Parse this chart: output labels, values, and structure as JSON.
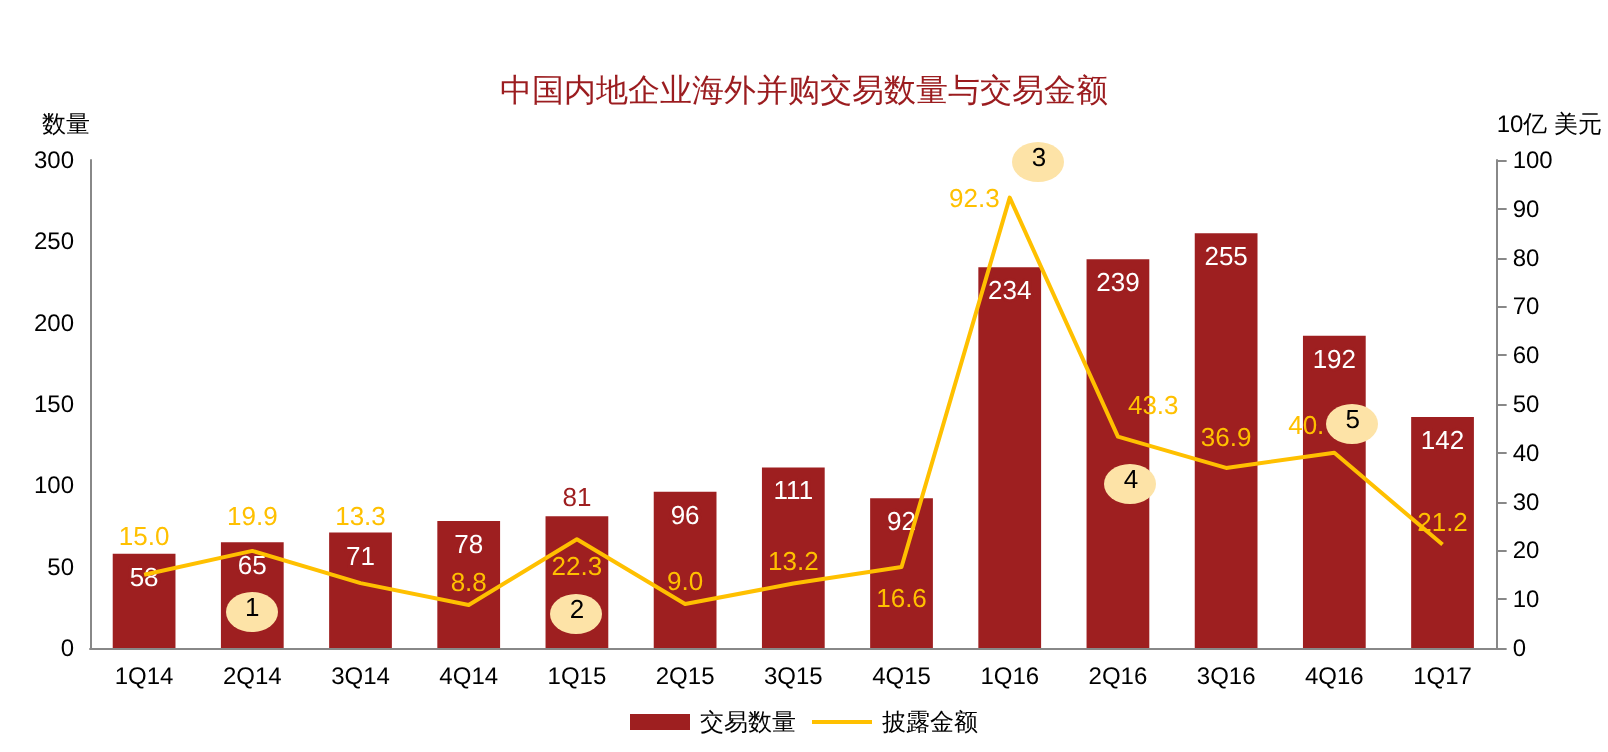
{
  "chart_data": {
    "type": "bar",
    "title": "中国内地企业海外并购交易数量与交易金额",
    "ylabel": "数量",
    "y2label": "10亿 美元",
    "categories": [
      "1Q14",
      "2Q14",
      "3Q14",
      "4Q14",
      "1Q15",
      "2Q15",
      "3Q15",
      "4Q15",
      "1Q16",
      "2Q16",
      "3Q16",
      "4Q16",
      "1Q17"
    ],
    "series": [
      {
        "name": "交易数量",
        "color": "#9e1f20",
        "values": [
          58,
          65,
          71,
          78,
          81,
          96,
          111,
          92,
          234,
          239,
          255,
          192,
          142
        ],
        "data_labels": true
      },
      {
        "name": "披露金额",
        "type": "line",
        "axis": "y2",
        "color": "#ffc000",
        "marker": "none",
        "values": [
          15.0,
          19.9,
          13.3,
          8.8,
          22.3,
          9.0,
          13.2,
          16.6,
          92.3,
          43.3,
          36.9,
          40.0,
          21.2
        ],
        "value_labels": [
          "15.0",
          "19.9",
          "13.3",
          "8.8",
          "22.3",
          "9.0",
          "13.2",
          "16.6",
          "92.3",
          "43.3",
          "36.9",
          "40.",
          "21.2"
        ]
      }
    ],
    "ylim": [
      0,
      300
    ],
    "yticks": [
      0,
      50,
      100,
      150,
      200,
      250,
      300
    ],
    "y2lim": [
      0,
      100
    ],
    "y2ticks": [
      0,
      10,
      20,
      30,
      40,
      50,
      60,
      70,
      80,
      90,
      100
    ],
    "grid": false,
    "legend": "bottom",
    "annotations": [
      "1",
      "2",
      "3",
      "4",
      "5"
    ]
  }
}
